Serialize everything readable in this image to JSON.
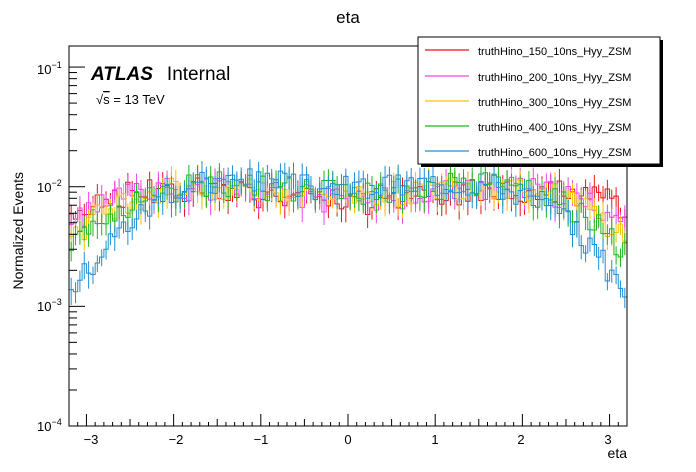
{
  "chart_data": {
    "type": "line",
    "title": "eta",
    "xlabel": "eta",
    "ylabel": "Normalized Events",
    "xlim": [
      -3.2,
      3.2
    ],
    "ylim": [
      0.0001,
      0.15
    ],
    "yscale": "log",
    "grid": false,
    "legend_position": "top-right",
    "x_ticks": [
      "−3",
      "−2",
      "−1",
      "0",
      "1",
      "2",
      "3"
    ],
    "y_ticks": [
      {
        "base": "10",
        "exp": "−1"
      },
      {
        "base": "10",
        "exp": "−2"
      },
      {
        "base": "10",
        "exp": "−3"
      },
      {
        "base": "10",
        "exp": "−4"
      }
    ],
    "annotations": {
      "experiment": "ATLAS",
      "status": "Internal",
      "sqrt": "√",
      "energy_s": "s",
      "energy_rest": " = 13 TeV"
    },
    "x": [
      -3.1,
      -2.9,
      -2.7,
      -2.5,
      -2.3,
      -2.1,
      -1.9,
      -1.7,
      -1.5,
      -1.3,
      -1.1,
      -0.9,
      -0.7,
      -0.5,
      -0.3,
      -0.1,
      0.1,
      0.3,
      0.5,
      0.7,
      0.9,
      1.1,
      1.3,
      1.5,
      1.7,
      1.9,
      2.1,
      2.3,
      2.5,
      2.7,
      2.9,
      3.1
    ],
    "series": [
      {
        "name": "truthHino_150_10ns_Hyy_ZSM",
        "color": "#e8141b",
        "values": [
          0.0062,
          0.0075,
          0.0085,
          0.009,
          0.0093,
          0.0096,
          0.0098,
          0.0097,
          0.0095,
          0.0093,
          0.009,
          0.0085,
          0.0082,
          0.0078,
          0.0076,
          0.0075,
          0.0075,
          0.0077,
          0.008,
          0.0083,
          0.0087,
          0.009,
          0.0093,
          0.0095,
          0.0097,
          0.0098,
          0.0097,
          0.0095,
          0.0092,
          0.0088,
          0.0082,
          0.0068
        ]
      },
      {
        "name": "truthHino_200_10ns_Hyy_ZSM",
        "color": "#ee44ee",
        "values": [
          0.0052,
          0.0065,
          0.0077,
          0.0085,
          0.009,
          0.0095,
          0.0098,
          0.0099,
          0.0098,
          0.0096,
          0.0093,
          0.009,
          0.0087,
          0.0084,
          0.0082,
          0.0081,
          0.0081,
          0.0082,
          0.0084,
          0.0087,
          0.009,
          0.0093,
          0.0096,
          0.0098,
          0.0099,
          0.0098,
          0.0095,
          0.009,
          0.0084,
          0.0076,
          0.0066,
          0.0052
        ]
      },
      {
        "name": "truthHino_300_10ns_Hyy_ZSM",
        "color": "#f5c400",
        "values": [
          0.0042,
          0.0055,
          0.0068,
          0.0079,
          0.0088,
          0.0095,
          0.01,
          0.0103,
          0.0104,
          0.0102,
          0.0099,
          0.0095,
          0.0092,
          0.009,
          0.0088,
          0.0087,
          0.0087,
          0.0088,
          0.009,
          0.0092,
          0.0095,
          0.0099,
          0.0102,
          0.0104,
          0.0103,
          0.01,
          0.0095,
          0.0088,
          0.0079,
          0.0068,
          0.0055,
          0.0042
        ]
      },
      {
        "name": "truthHino_400_10ns_Hyy_ZSM",
        "color": "#1cb81c",
        "values": [
          0.0033,
          0.0045,
          0.0058,
          0.0071,
          0.0083,
          0.0092,
          0.0099,
          0.0104,
          0.0107,
          0.0106,
          0.0103,
          0.0099,
          0.0096,
          0.0094,
          0.0093,
          0.0092,
          0.0092,
          0.0093,
          0.0094,
          0.0096,
          0.0099,
          0.0103,
          0.0106,
          0.0107,
          0.0104,
          0.0099,
          0.0092,
          0.0083,
          0.0071,
          0.0058,
          0.0045,
          0.0031
        ]
      },
      {
        "name": "truthHino_600_10ns_Hyy_ZSM",
        "color": "#1f8fd6",
        "values": [
          0.0016,
          0.0025,
          0.0038,
          0.0053,
          0.0068,
          0.0083,
          0.0095,
          0.0105,
          0.0112,
          0.0114,
          0.0113,
          0.011,
          0.0107,
          0.0104,
          0.0102,
          0.0101,
          0.0101,
          0.0102,
          0.0104,
          0.0107,
          0.011,
          0.0113,
          0.0114,
          0.0112,
          0.0105,
          0.0095,
          0.0083,
          0.0068,
          0.0053,
          0.0038,
          0.0025,
          0.0014
        ]
      }
    ]
  }
}
